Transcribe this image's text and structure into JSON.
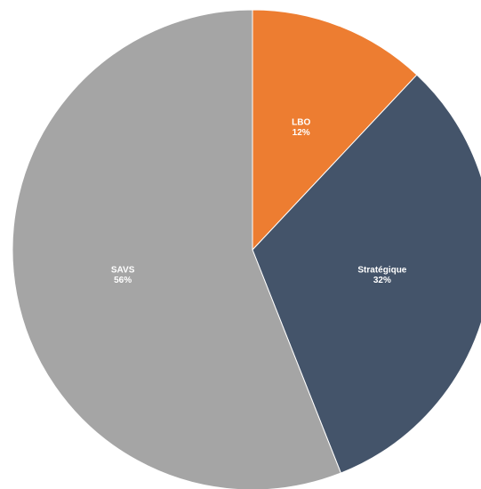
{
  "chart_data": {
    "type": "pie",
    "slices": [
      {
        "label": "LBO",
        "value": 12,
        "display_value": "12%",
        "color": "#ed7d31"
      },
      {
        "label": "Stratégique",
        "value": 32,
        "display_value": "32%",
        "color": "#44546a"
      },
      {
        "label": "SAVS",
        "value": 56,
        "display_value": "56%",
        "color": "#a5a5a5"
      }
    ],
    "start_angle": "12 o'clock",
    "direction": "clockwise",
    "slice_border_color": "#ffffff",
    "legend": "none",
    "data_labels": "inside slices"
  }
}
